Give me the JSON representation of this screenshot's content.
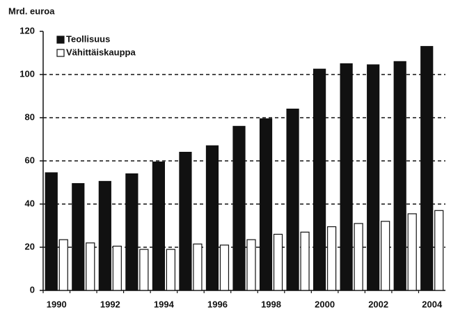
{
  "chart_data": {
    "type": "bar",
    "y_label": "Mrd. euroa",
    "categories": [
      "1990",
      null,
      "1992",
      null,
      "1994",
      null,
      "1996",
      null,
      "1998",
      null,
      "2000",
      null,
      "2002",
      null,
      "2004"
    ],
    "series": [
      {
        "name": "Teollisuus",
        "color": "#111111",
        "values": [
          54.5,
          49.5,
          50.5,
          54,
          59.5,
          64,
          67,
          76,
          79.5,
          84,
          102.5,
          105,
          104.5,
          106,
          113
        ]
      },
      {
        "name": "Vähittäiskauppa",
        "color": "#ffffff",
        "values": [
          23.5,
          22,
          20.5,
          19,
          19,
          21.5,
          21,
          23.5,
          26,
          27,
          29.5,
          31,
          32,
          35.5,
          37
        ]
      }
    ],
    "ylim": [
      0,
      120
    ],
    "yticks": [
      0,
      20,
      40,
      60,
      80,
      100,
      120
    ],
    "grid": true,
    "legend": "upper left"
  }
}
